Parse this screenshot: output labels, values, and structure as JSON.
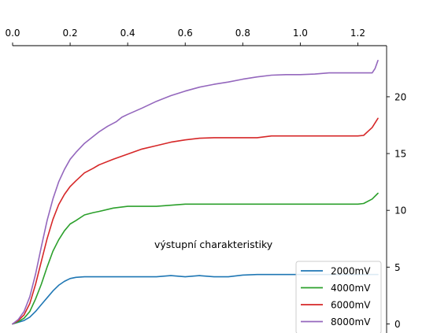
{
  "chart_data": {
    "type": "line",
    "annotation": "výstupní charakteristiky",
    "xlim": [
      0.0,
      1.3
    ],
    "ylim": [
      -0.8,
      24.5
    ],
    "x_ticks": [
      0.0,
      0.2,
      0.4,
      0.6,
      0.8,
      1.0,
      1.2
    ],
    "x_tick_labels": [
      "0.0",
      "0.2",
      "0.4",
      "0.6",
      "0.8",
      "1.0",
      "1.2"
    ],
    "y_ticks": [
      0,
      5,
      10,
      15,
      20
    ],
    "y_tick_labels": [
      "0",
      "5",
      "10",
      "15",
      "20"
    ],
    "x_axis_position": "top",
    "y_axis_position": "right",
    "grid": false,
    "legend_position": "bottom-right",
    "series": [
      {
        "name": "2000mV",
        "color": "#1f77b4",
        "x": [
          0,
          0.02,
          0.04,
          0.06,
          0.08,
          0.1,
          0.12,
          0.14,
          0.16,
          0.18,
          0.2,
          0.22,
          0.25,
          0.3,
          0.35,
          0.4,
          0.45,
          0.5,
          0.55,
          0.6,
          0.65,
          0.7,
          0.75,
          0.8,
          0.85,
          0.9,
          0.95,
          1.0,
          1.05,
          1.1,
          1.15,
          1.2,
          1.25,
          1.27
        ],
        "y": [
          0,
          0.15,
          0.3,
          0.6,
          1.1,
          1.7,
          2.3,
          2.9,
          3.4,
          3.75,
          4.0,
          4.1,
          4.15,
          4.15,
          4.15,
          4.15,
          4.15,
          4.15,
          4.25,
          4.15,
          4.25,
          4.15,
          4.15,
          4.3,
          4.35,
          4.35,
          4.35,
          4.35,
          4.35,
          4.35,
          4.35,
          4.35,
          4.35,
          4.35
        ]
      },
      {
        "name": "4000mV",
        "color": "#2ca02c",
        "x": [
          0,
          0.02,
          0.04,
          0.06,
          0.08,
          0.1,
          0.12,
          0.14,
          0.16,
          0.18,
          0.2,
          0.22,
          0.25,
          0.28,
          0.3,
          0.35,
          0.4,
          0.45,
          0.5,
          0.55,
          0.6,
          0.65,
          0.7,
          0.75,
          0.8,
          0.85,
          0.9,
          0.95,
          1.0,
          1.05,
          1.1,
          1.15,
          1.2,
          1.22,
          1.25,
          1.27
        ],
        "y": [
          0,
          0.2,
          0.5,
          1.1,
          2.2,
          3.5,
          5.0,
          6.4,
          7.4,
          8.2,
          8.8,
          9.1,
          9.6,
          9.8,
          9.9,
          10.2,
          10.35,
          10.35,
          10.35,
          10.45,
          10.55,
          10.55,
          10.55,
          10.55,
          10.55,
          10.55,
          10.55,
          10.55,
          10.55,
          10.55,
          10.55,
          10.55,
          10.55,
          10.6,
          11.0,
          11.5
        ]
      },
      {
        "name": "6000mV",
        "color": "#d62728",
        "x": [
          0,
          0.02,
          0.04,
          0.06,
          0.08,
          0.1,
          0.12,
          0.14,
          0.16,
          0.18,
          0.2,
          0.22,
          0.25,
          0.28,
          0.3,
          0.35,
          0.4,
          0.45,
          0.5,
          0.55,
          0.6,
          0.65,
          0.7,
          0.75,
          0.8,
          0.85,
          0.9,
          0.95,
          1.0,
          1.05,
          1.1,
          1.15,
          1.2,
          1.22,
          1.25,
          1.27
        ],
        "y": [
          0,
          0.3,
          0.8,
          1.8,
          3.5,
          5.5,
          7.5,
          9.2,
          10.5,
          11.4,
          12.1,
          12.6,
          13.3,
          13.7,
          14.0,
          14.5,
          14.95,
          15.4,
          15.7,
          16.0,
          16.2,
          16.35,
          16.4,
          16.4,
          16.4,
          16.4,
          16.55,
          16.55,
          16.55,
          16.55,
          16.55,
          16.55,
          16.55,
          16.6,
          17.3,
          18.1
        ]
      },
      {
        "name": "8000mV",
        "color": "#9467bd",
        "x": [
          0,
          0.02,
          0.04,
          0.06,
          0.08,
          0.1,
          0.12,
          0.14,
          0.16,
          0.18,
          0.2,
          0.22,
          0.25,
          0.28,
          0.3,
          0.33,
          0.36,
          0.38,
          0.4,
          0.45,
          0.5,
          0.55,
          0.6,
          0.65,
          0.7,
          0.75,
          0.8,
          0.85,
          0.9,
          0.95,
          1.0,
          1.05,
          1.1,
          1.15,
          1.2,
          1.22,
          1.25,
          1.26,
          1.27
        ],
        "y": [
          0,
          0.4,
          1.1,
          2.4,
          4.4,
          6.8,
          9.1,
          11.0,
          12.5,
          13.6,
          14.5,
          15.1,
          15.9,
          16.5,
          16.9,
          17.4,
          17.8,
          18.2,
          18.45,
          19.0,
          19.6,
          20.1,
          20.5,
          20.85,
          21.1,
          21.3,
          21.55,
          21.75,
          21.9,
          21.95,
          21.95,
          22.0,
          22.1,
          22.1,
          22.1,
          22.1,
          22.1,
          22.5,
          23.2
        ]
      }
    ]
  }
}
